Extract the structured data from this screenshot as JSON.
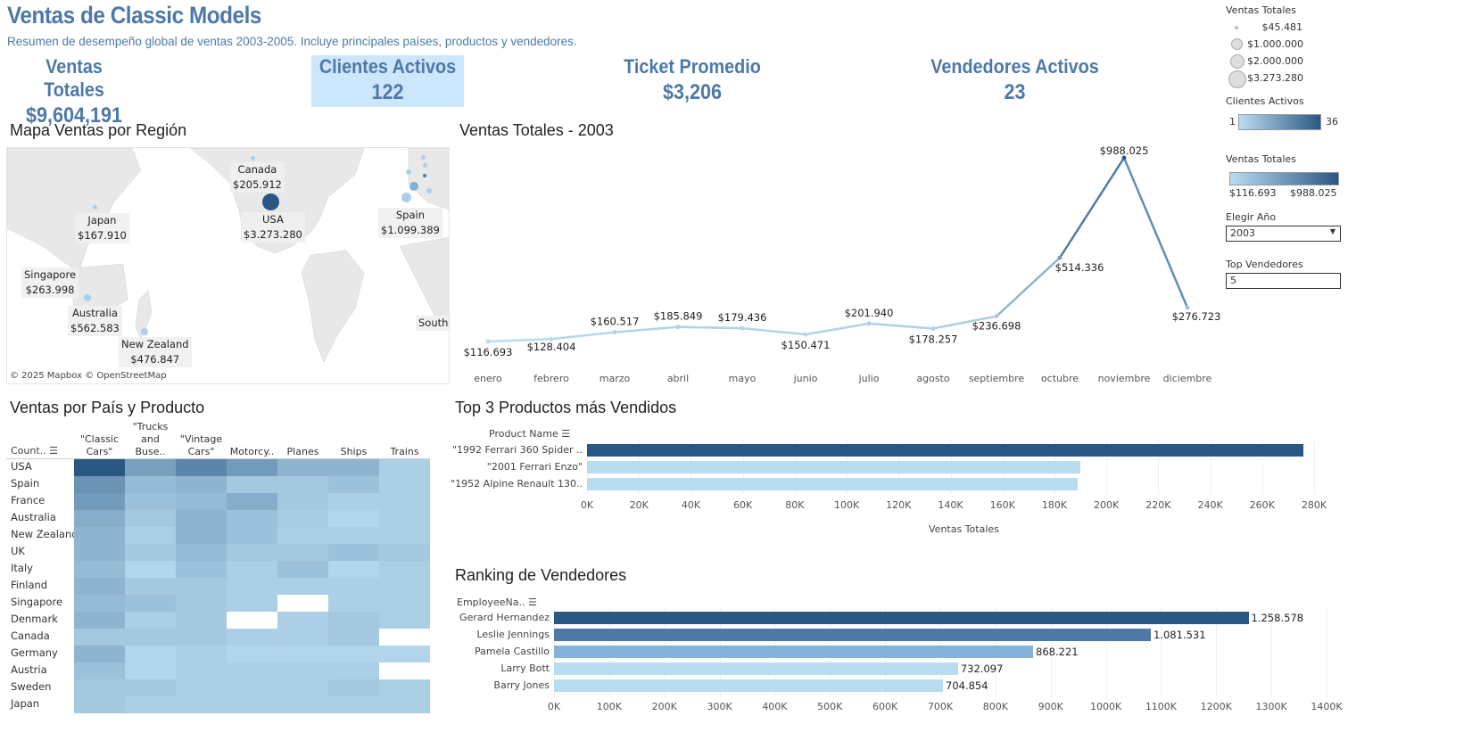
{
  "header": {
    "title": "Ventas de Classic Models",
    "subtitle": "Resumen de desempeño global de ventas 2003-2005. Incluye principales países, productos y vendedores."
  },
  "kpis": [
    {
      "label": "Ventas Totales",
      "value": "$9,604,191"
    },
    {
      "label": "Clientes Activos",
      "value": "122"
    },
    {
      "label": "Ticket Promedio",
      "value": "$3,206"
    },
    {
      "label": "Vendedores Activos",
      "value": "23"
    }
  ],
  "colors": {
    "accent": "#4e79a7",
    "dark": "#2a5783",
    "light": "#b9dcf0",
    "kpi_highlight": "#cce6fb"
  },
  "legend": {
    "size_title": "Ventas Totales",
    "sizes": [
      "$45.481",
      "$1.000.000",
      "$2.000.000",
      "$3.273.280"
    ],
    "clientes_title": "Clientes Activos",
    "clientes_min": "1",
    "clientes_max": "36",
    "ventas_title": "Ventas Totales",
    "ventas_min": "$116.693",
    "ventas_max": "$988.025"
  },
  "filters": {
    "year_label": "Elegir Año",
    "year_value": "2003",
    "top_label": "Top Vendedores",
    "top_value": "5"
  },
  "map": {
    "title": "Mapa Ventas por Región",
    "attribution": "© 2025 Mapbox  © OpenStreetMap",
    "labels": [
      {
        "name": "Canada",
        "value": "$205.912"
      },
      {
        "name": "USA",
        "value": "$3.273.280"
      },
      {
        "name": "Japan",
        "value": "$167.910"
      },
      {
        "name": "Spain",
        "value": "$1.099.389"
      },
      {
        "name": "Singapore",
        "value": "$263.998"
      },
      {
        "name": "Australia",
        "value": "$562.583"
      },
      {
        "name": "New Zealand",
        "value": "$476.847"
      },
      {
        "name": "South..",
        "value": ""
      }
    ]
  },
  "chart_data": [
    {
      "type": "line",
      "title": "Ventas Totales - 2003",
      "categories": [
        "enero",
        "febrero",
        "marzo",
        "abril",
        "mayo",
        "junio",
        "julio",
        "agosto",
        "septiembre",
        "octubre",
        "noviembre",
        "diciembre"
      ],
      "values": [
        116693,
        128404,
        160517,
        185849,
        179436,
        150471,
        201940,
        178257,
        236698,
        514336,
        988025,
        276723
      ],
      "labels": [
        "$116.693",
        "$128.404",
        "$160.517",
        "$185.849",
        "$179.436",
        "$150.471",
        "$201.940",
        "$178.257",
        "$236.698",
        "$514.336",
        "$988.025",
        "$276.723"
      ]
    },
    {
      "type": "heatmap",
      "title": "Ventas por País y Producto",
      "row_header": "Count..",
      "columns": [
        "\"Classic Cars\"",
        "\"Trucks and Buse..",
        "\"Vintage Cars\"",
        "Motorcy..",
        "Planes",
        "Ships",
        "Trains"
      ],
      "rows": [
        "USA",
        "Spain",
        "France",
        "Australia",
        "New Zealand",
        "UK",
        "Italy",
        "Finland",
        "Singapore",
        "Denmark",
        "Canada",
        "Germany",
        "Austria",
        "Sweden",
        "Japan"
      ],
      "intensity": [
        [
          1,
          0.45,
          0.65,
          0.5,
          0.3,
          0.3,
          0.1
        ],
        [
          0.55,
          0.25,
          0.3,
          0.15,
          0.15,
          0.2,
          0.1
        ],
        [
          0.5,
          0.2,
          0.25,
          0.35,
          0.15,
          0.1,
          0.1
        ],
        [
          0.35,
          0.15,
          0.3,
          0.2,
          0.12,
          0.05,
          0.1
        ],
        [
          0.3,
          0.1,
          0.3,
          0.2,
          0.1,
          0.1,
          0.1
        ],
        [
          0.3,
          0.15,
          0.25,
          0.15,
          0.15,
          0.2,
          0.15
        ],
        [
          0.25,
          0.05,
          0.2,
          0.1,
          0.2,
          0.05,
          0.1
        ],
        [
          0.3,
          0.15,
          0.15,
          0.1,
          0.1,
          0.1,
          0.1
        ],
        [
          0.25,
          0.2,
          0.15,
          0.1,
          null,
          0.1,
          0.1
        ],
        [
          0.3,
          0.1,
          0.15,
          null,
          0.1,
          0.15,
          0.1
        ],
        [
          0.15,
          0.15,
          0.15,
          0.1,
          0.1,
          0.15,
          null
        ],
        [
          0.3,
          0.05,
          0.1,
          0.05,
          0.05,
          0.05,
          0.05
        ],
        [
          0.2,
          0.05,
          0.1,
          0.1,
          0.1,
          0.1,
          null
        ],
        [
          0.15,
          0.15,
          0.1,
          0.1,
          0.1,
          0.15,
          0.1
        ],
        [
          0.15,
          0.1,
          0.1,
          0.1,
          0.1,
          0.1,
          0.1
        ]
      ]
    },
    {
      "type": "bar",
      "title": "Top 3 Productos más Vendidos",
      "ylabel": "Product Name",
      "xlabel": "Ventas Totales",
      "categories": [
        "\"1992 Ferrari 360 Spider ..",
        "\"2001 Ferrari Enzo\"",
        "\"1952 Alpine Renault 130.."
      ],
      "values": [
        276000,
        190000,
        189000
      ],
      "xlim": [
        0,
        280000
      ],
      "ticks": [
        "0K",
        "20K",
        "40K",
        "60K",
        "80K",
        "100K",
        "120K",
        "140K",
        "160K",
        "180K",
        "200K",
        "220K",
        "240K",
        "260K",
        "280K"
      ]
    },
    {
      "type": "bar",
      "title": "Ranking de Vendedores",
      "ylabel": "EmployeeNa..",
      "categories": [
        "Gerard Hernandez",
        "Leslie Jennings",
        "Pamela Castillo",
        "Larry Bott",
        "Barry Jones"
      ],
      "values": [
        1258578,
        1081531,
        868221,
        732097,
        704854
      ],
      "labels": [
        "1.258.578",
        "1.081.531",
        "868.221",
        "732.097",
        "704.854"
      ],
      "xlim": [
        0,
        1400000
      ],
      "ticks": [
        "0K",
        "100K",
        "200K",
        "300K",
        "400K",
        "500K",
        "600K",
        "700K",
        "800K",
        "900K",
        "1000K",
        "1100K",
        "1200K",
        "1300K",
        "1400K"
      ]
    }
  ]
}
